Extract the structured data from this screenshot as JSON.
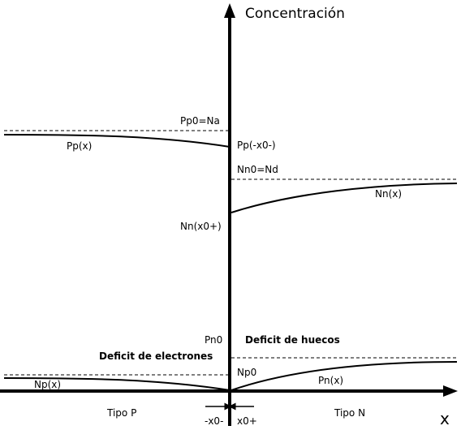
{
  "y_axis_label": "Concentración",
  "x_axis_label": "x",
  "labels": {
    "pp0": "Pp0=Na",
    "pp_x": "Pp(x)",
    "pp_edge": "Pp(-x0-)",
    "nn0": "Nn0=Nd",
    "nn_x": "Nn(x)",
    "nn_edge": "Nn(x0+)",
    "pn0": "Pn0",
    "deficit_huecos": "Deficit de huecos",
    "deficit_electrones": "Deficit de electrones",
    "np0": "Np0",
    "np_x": "Np(x)",
    "pn_x": "Pn(x)",
    "tipo_p": "Tipo P",
    "tipo_n": "Tipo N",
    "minus_x0": "-x0-",
    "plus_x0": "x0+"
  }
}
